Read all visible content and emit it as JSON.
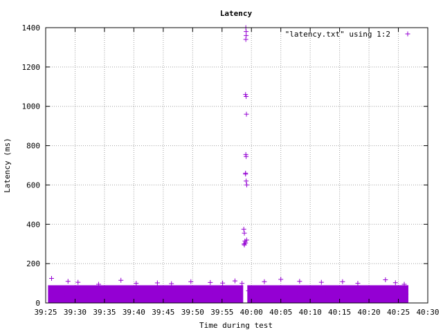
{
  "chart_data": {
    "type": "scatter",
    "title": "Latency",
    "xlabel": "Time during test",
    "ylabel": "Latency (ms)",
    "legend_position": "top-right",
    "grid": true,
    "marker": "+",
    "color": "#9400d3",
    "x_unit": "seconds from 39:25",
    "xlim": [
      0,
      65.0
    ],
    "ylim": [
      0,
      1400
    ],
    "x_ticks": [
      {
        "v": 0,
        "label": "39:25"
      },
      {
        "v": 5,
        "label": "39:30"
      },
      {
        "v": 10,
        "label": "39:35"
      },
      {
        "v": 15,
        "label": "39:40"
      },
      {
        "v": 20,
        "label": "39:45"
      },
      {
        "v": 25,
        "label": "39:50"
      },
      {
        "v": 30,
        "label": "39:55"
      },
      {
        "v": 35,
        "label": "40:00"
      },
      {
        "v": 40,
        "label": "40:05"
      },
      {
        "v": 45,
        "label": "40:10"
      },
      {
        "v": 50,
        "label": "40:15"
      },
      {
        "v": 55,
        "label": "40:20"
      },
      {
        "v": 60,
        "label": "40:25"
      },
      {
        "v": 65,
        "label": "40:30"
      }
    ],
    "y_ticks": [
      0,
      200,
      400,
      600,
      800,
      1000,
      1200,
      1400
    ],
    "series": [
      {
        "name": "\"latency.txt\" using 1:2",
        "x": [
          1.2,
          2.1,
          3.3,
          4.8,
          6.0,
          7.2,
          8.5,
          9.6,
          11.0,
          12.2,
          13.4,
          14.6,
          16.0,
          17.3,
          18.2,
          19.6,
          20.8,
          22.1,
          23.3,
          24.2,
          25.9,
          27.0,
          28.4,
          29.5,
          30.7,
          31.9,
          33.0,
          34.5,
          35.3,
          36.8,
          38.0,
          39.1,
          40.3,
          41.5,
          42.7,
          44.0,
          45.1,
          46.4,
          47.6,
          48.9,
          50.0,
          51.2,
          52.5,
          53.8,
          55.0,
          56.3,
          57.5,
          58.9,
          60.1,
          61.3,
          1.0,
          3.8,
          5.5,
          9.0,
          12.8,
          15.4,
          19.0,
          21.4,
          24.7,
          28.0,
          30.1,
          32.2,
          33.4,
          37.2,
          40.0,
          43.2,
          46.9,
          50.5,
          53.1,
          57.8,
          59.5,
          61.0,
          33.75,
          33.8,
          33.7,
          33.9,
          33.8,
          34.1,
          34.2,
          34.0,
          34.1,
          34.05,
          34.0,
          34.15,
          34.0,
          34.1,
          34.05,
          34.1,
          34.05,
          34.2,
          34.0,
          34.1
        ],
        "y": [
          45,
          60,
          38,
          55,
          72,
          40,
          63,
          50,
          48,
          70,
          42,
          58,
          66,
          44,
          52,
          61,
          39,
          68,
          47,
          57,
          64,
          43,
          53,
          71,
          49,
          59,
          37,
          62,
          46,
          54,
          67,
          41,
          56,
          65,
          48,
          60,
          44,
          69,
          51,
          58,
          40,
          63,
          47,
          55,
          70,
          43,
          61,
          50,
          57,
          45,
          125,
          110,
          105,
          95,
          115,
          100,
          102,
          98,
          108,
          104,
          101,
          112,
          100,
          108,
          120,
          110,
          105,
          108,
          100,
          118,
          103,
          95,
          300,
          355,
          375,
          315,
          295,
          620,
          600,
          655,
          745,
          755,
          660,
          960,
          1060,
          1050,
          1340,
          1360,
          1400,
          320,
          305,
          1380
        ]
      }
    ]
  }
}
